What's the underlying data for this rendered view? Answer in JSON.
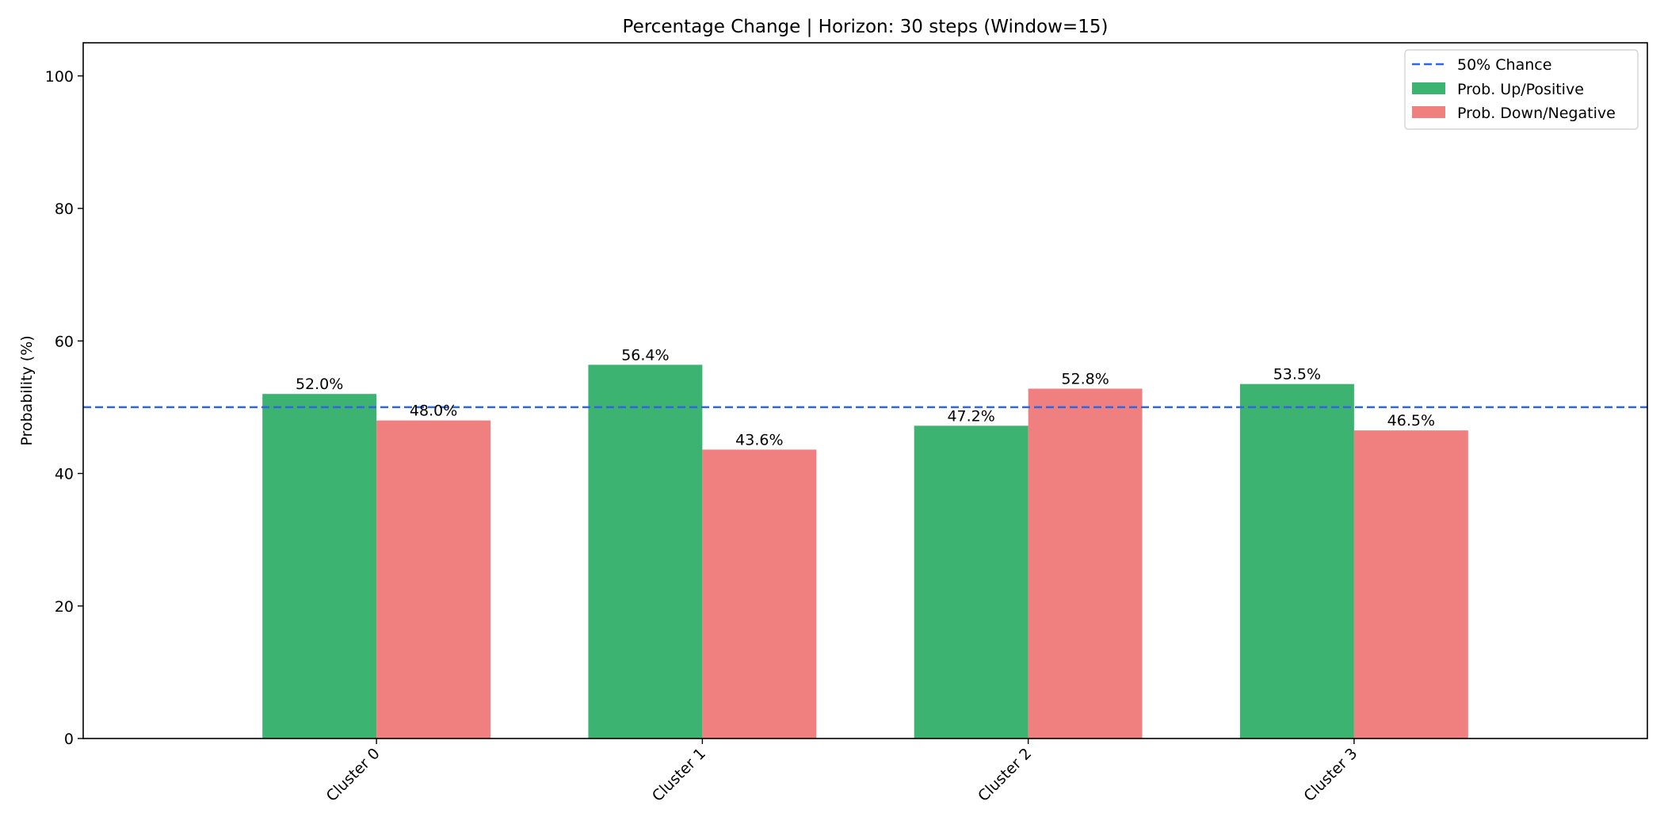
{
  "chart_data": {
    "type": "bar",
    "title": "Percentage Change | Horizon: 30 steps (Window=15)",
    "xlabel": "",
    "ylabel": "Probability (%)",
    "ylim": [
      0,
      105
    ],
    "yticks": [
      0,
      20,
      40,
      60,
      80,
      100
    ],
    "categories": [
      "Cluster 0",
      "Cluster 1",
      "Cluster 2",
      "Cluster 3"
    ],
    "series": [
      {
        "name": "Prob. Up/Positive",
        "color": "#3cb371",
        "values": [
          52.0,
          56.4,
          47.2,
          53.5
        ],
        "labels": [
          "52.0%",
          "56.4%",
          "47.2%",
          "53.5%"
        ]
      },
      {
        "name": "Prob. Down/Negative",
        "color": "#f08080",
        "values": [
          48.0,
          43.6,
          52.8,
          46.5
        ],
        "labels": [
          "48.0%",
          "43.6%",
          "52.8%",
          "46.5%"
        ]
      }
    ],
    "reference_line": {
      "name": "50% Chance",
      "value": 50,
      "color": "#3366dd",
      "style": "dashed"
    },
    "legend_position": "top-right",
    "grid": false
  }
}
